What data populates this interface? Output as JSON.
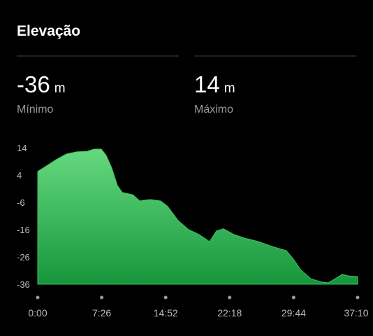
{
  "header": {
    "title": "Elevação"
  },
  "stats": [
    {
      "value": "-36",
      "unit": "m",
      "label": "Mínimo"
    },
    {
      "value": "14",
      "unit": "m",
      "label": "Máximo"
    }
  ],
  "chart_data": {
    "type": "area",
    "color": "#3cc35f",
    "x": [
      0,
      54,
      127,
      200,
      273,
      346,
      394,
      443,
      477,
      516,
      555,
      589,
      662,
      711,
      784,
      857,
      906,
      979,
      1052,
      1125,
      1198,
      1246,
      1295,
      1368,
      1441,
      1539,
      1636,
      1733,
      1782,
      1831,
      1904,
      1977,
      2025,
      2074,
      2123,
      2171,
      2230
    ],
    "values": [
      5.3,
      7.1,
      9.6,
      11.7,
      12.5,
      12.7,
      13.5,
      13.5,
      11.2,
      6.6,
      0.2,
      -2.4,
      -3.2,
      -5.5,
      -5,
      -5.5,
      -7.5,
      -12.7,
      -16,
      -17.8,
      -20.4,
      -16.5,
      -15.7,
      -17.8,
      -19.1,
      -20.4,
      -22.2,
      -23.7,
      -26.8,
      -30.6,
      -34,
      -35.2,
      -35.5,
      -34,
      -32.4,
      -33,
      -33.2
    ],
    "xlim": [
      0,
      2230
    ],
    "xticks": [
      {
        "value": 0,
        "label": "0:00"
      },
      {
        "value": 446,
        "label": "7:26"
      },
      {
        "value": 892,
        "label": "14:52"
      },
      {
        "value": 1338,
        "label": "22:18"
      },
      {
        "value": 1784,
        "label": "29:44"
      },
      {
        "value": 2230,
        "label": "37:10"
      }
    ],
    "ylim": [
      -36,
      14
    ],
    "yticks": [
      14,
      4,
      -6,
      -16,
      -26,
      -36
    ]
  }
}
